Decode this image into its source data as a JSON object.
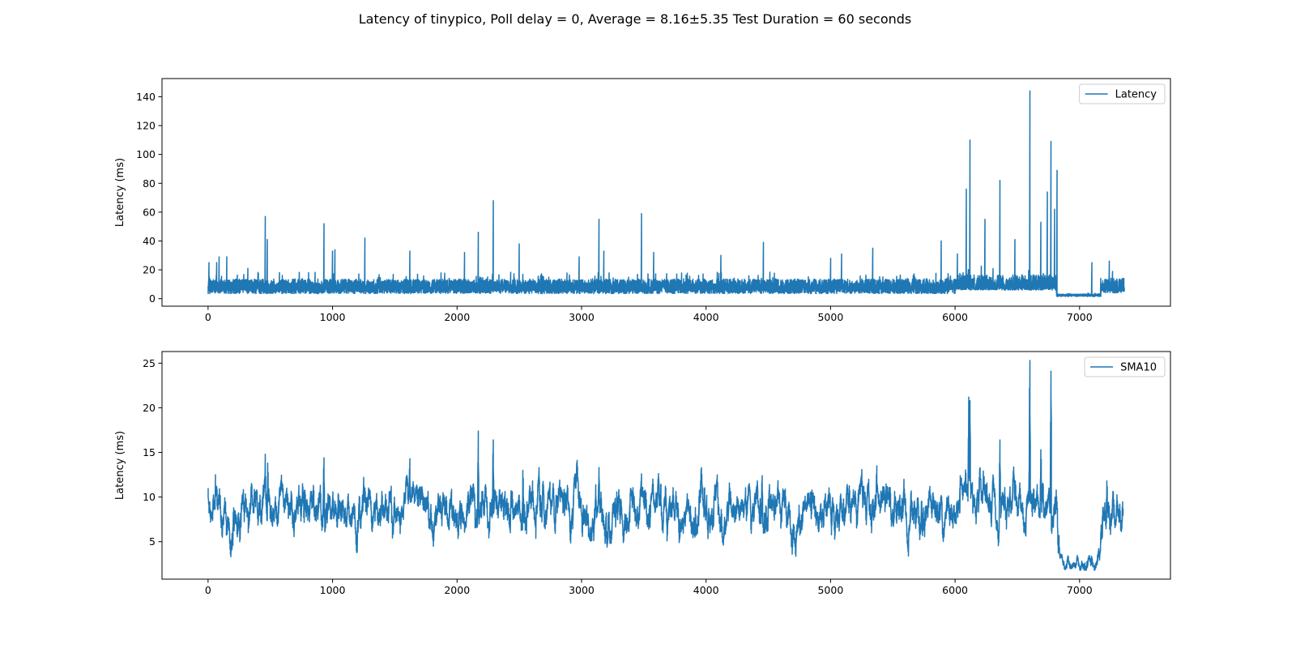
{
  "figure": {
    "title": "Latency of tinypico, Poll delay = 0, Average = 8.16±5.35 Test Duration = 60 seconds"
  },
  "chart_data": [
    {
      "type": "line",
      "title": "",
      "xlabel": "",
      "ylabel": "Latency (ms)",
      "xlim": [
        -370,
        7730
      ],
      "ylim": [
        -5.2,
        152.6
      ],
      "xticks": [
        0,
        1000,
        2000,
        3000,
        4000,
        5000,
        6000,
        7000
      ],
      "yticks": [
        0,
        20,
        40,
        60,
        80,
        100,
        120,
        140
      ],
      "legend": "top-right",
      "grid": false,
      "color": "#1f77b4",
      "series": [
        {
          "name": "Latency",
          "n_points": 7360,
          "segments": [
            {
              "x": [
                0,
                6000
              ],
              "low": 3.5,
              "high": 16,
              "mean": 8
            },
            {
              "x": [
                6000,
                6815
              ],
              "low": 6,
              "high": 20,
              "mean": 8.5
            },
            {
              "x": [
                6815,
                7170
              ],
              "low": 1.5,
              "high": 3.5,
              "mean": 2.5
            },
            {
              "x": [
                7170,
                7360
              ],
              "low": 4,
              "high": 17,
              "mean": 8
            }
          ],
          "peaks": [
            [
              8,
              25
            ],
            [
              70,
              25
            ],
            [
              90,
              29
            ],
            [
              150,
              29
            ],
            [
              320,
              21
            ],
            [
              460,
              57
            ],
            [
              475,
              41
            ],
            [
              930,
              52
            ],
            [
              1000,
              33
            ],
            [
              1020,
              34
            ],
            [
              1260,
              42
            ],
            [
              1620,
              33
            ],
            [
              2060,
              32
            ],
            [
              2170,
              46
            ],
            [
              2290,
              68
            ],
            [
              2500,
              38
            ],
            [
              2980,
              29
            ],
            [
              3140,
              55
            ],
            [
              3180,
              33
            ],
            [
              3480,
              59
            ],
            [
              3580,
              32
            ],
            [
              4120,
              30
            ],
            [
              4460,
              39
            ],
            [
              5000,
              28
            ],
            [
              5090,
              31
            ],
            [
              5340,
              35
            ],
            [
              5890,
              40
            ],
            [
              6020,
              31
            ],
            [
              6090,
              76
            ],
            [
              6120,
              110
            ],
            [
              6240,
              55
            ],
            [
              6360,
              82
            ],
            [
              6480,
              41
            ],
            [
              6600,
              144
            ],
            [
              6690,
              53
            ],
            [
              6740,
              74
            ],
            [
              6770,
              109
            ],
            [
              6800,
              62
            ],
            [
              6820,
              89
            ],
            [
              7100,
              25
            ],
            [
              7240,
              26
            ]
          ]
        }
      ]
    },
    {
      "type": "line",
      "title": "",
      "xlabel": "",
      "ylabel": "Latency (ms)",
      "xlim": [
        -370,
        7730
      ],
      "ylim": [
        0.8,
        26.3
      ],
      "xticks": [
        0,
        1000,
        2000,
        3000,
        4000,
        5000,
        6000,
        7000
      ],
      "yticks": [
        5,
        10,
        15,
        20,
        25
      ],
      "legend": "top-right",
      "grid": false,
      "color": "#1f77b4",
      "series": [
        {
          "name": "SMA10",
          "n_points": 7351,
          "levels": [
            [
              0,
              8.5
            ],
            [
              6000,
              8.5
            ],
            [
              6050,
              9.8
            ],
            [
              6815,
              9.8
            ],
            [
              6840,
              2.6
            ],
            [
              7160,
              2.8
            ],
            [
              7200,
              8.5
            ],
            [
              7360,
              8.3
            ]
          ],
          "amplitude": 1.6,
          "peaks": [
            [
              0,
              11
            ],
            [
              60,
              12.5
            ],
            [
              460,
              14.8
            ],
            [
              480,
              13.8
            ],
            [
              930,
              14.4
            ],
            [
              1250,
              12.2
            ],
            [
              1620,
              14.3
            ],
            [
              2170,
              17.4
            ],
            [
              2290,
              16.4
            ],
            [
              2530,
              13
            ],
            [
              3140,
              13.3
            ],
            [
              3480,
              12.6
            ],
            [
              4450,
              12.4
            ],
            [
              5370,
              13.5
            ],
            [
              6110,
              21.2
            ],
            [
              6120,
              20.8
            ],
            [
              6360,
              16.4
            ],
            [
              6600,
              25.3
            ],
            [
              6690,
              15.3
            ],
            [
              6770,
              24.1
            ],
            [
              7220,
              11.8
            ]
          ]
        }
      ]
    }
  ]
}
